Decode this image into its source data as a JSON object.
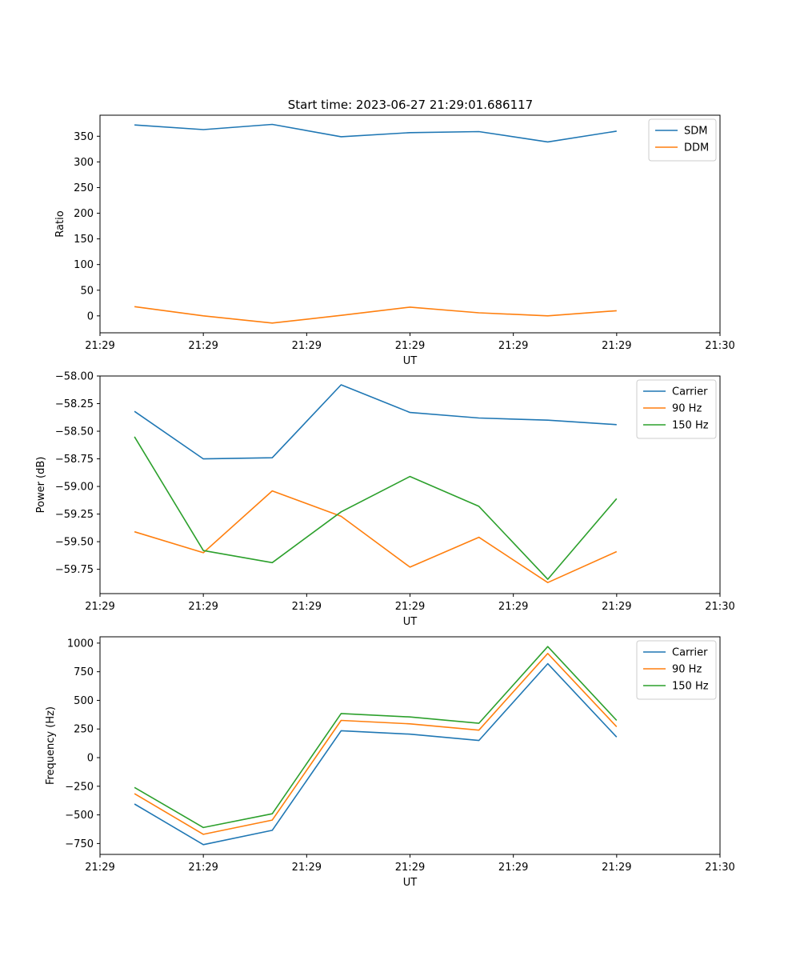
{
  "figure": {
    "title": "Start time: 2023-06-27 21:29:01.686117"
  },
  "colors": {
    "blue": "#1f77b4",
    "orange": "#ff7f0e",
    "green": "#2ca02c"
  },
  "chart_data": [
    {
      "type": "line",
      "title": "Start time: 2023-06-27 21:29:01.686117",
      "xlabel": "UT",
      "ylabel": "Ratio",
      "x": [
        1,
        2,
        3,
        4,
        5,
        6,
        7,
        8
      ],
      "xlim": [
        0.5,
        9.5
      ],
      "xticks": [
        {
          "pos": 0.5,
          "label": "21:29"
        },
        {
          "pos": 2.0,
          "label": "21:29"
        },
        {
          "pos": 3.5,
          "label": "21:29"
        },
        {
          "pos": 5.0,
          "label": "21:29"
        },
        {
          "pos": 6.5,
          "label": "21:29"
        },
        {
          "pos": 8.0,
          "label": "21:29"
        },
        {
          "pos": 9.5,
          "label": "21:30"
        }
      ],
      "ylim": [
        -33,
        391
      ],
      "yticks": [
        0,
        50,
        100,
        150,
        200,
        250,
        300,
        350
      ],
      "legend": "top-right",
      "series": [
        {
          "name": "SDM",
          "color": "#1f77b4",
          "values": [
            372,
            363,
            373,
            349,
            357,
            359,
            339,
            360
          ]
        },
        {
          "name": "DDM",
          "color": "#ff7f0e",
          "values": [
            18,
            0,
            -14,
            1,
            17,
            6,
            0,
            10
          ]
        }
      ]
    },
    {
      "type": "line",
      "xlabel": "UT",
      "ylabel": "Power (dB)",
      "x": [
        1,
        2,
        3,
        4,
        5,
        6,
        7,
        8
      ],
      "xlim": [
        0.5,
        9.5
      ],
      "xticks": [
        {
          "pos": 0.5,
          "label": "21:29"
        },
        {
          "pos": 2.0,
          "label": "21:29"
        },
        {
          "pos": 3.5,
          "label": "21:29"
        },
        {
          "pos": 5.0,
          "label": "21:29"
        },
        {
          "pos": 6.5,
          "label": "21:29"
        },
        {
          "pos": 8.0,
          "label": "21:29"
        },
        {
          "pos": 9.5,
          "label": "21:30"
        }
      ],
      "ylim": [
        -59.97,
        -58.0
      ],
      "yticks": [
        -59.75,
        -59.5,
        -59.25,
        -59.0,
        -58.75,
        -58.5,
        -58.25,
        -58.0
      ],
      "yticklabels": [
        "−59.75",
        "−59.50",
        "−59.25",
        "−59.00",
        "−58.75",
        "−58.50",
        "−58.25",
        "−58.00"
      ],
      "legend": "top-right",
      "series": [
        {
          "name": "Carrier",
          "color": "#1f77b4",
          "values": [
            -58.32,
            -58.75,
            -58.74,
            -58.08,
            -58.33,
            -58.38,
            -58.4,
            -58.44
          ]
        },
        {
          "name": "90 Hz",
          "color": "#ff7f0e",
          "values": [
            -59.41,
            -59.6,
            -59.04,
            -59.27,
            -59.73,
            -59.46,
            -59.87,
            -59.59
          ]
        },
        {
          "name": "150 Hz",
          "color": "#2ca02c",
          "values": [
            -58.55,
            -59.58,
            -59.69,
            -59.23,
            -58.91,
            -59.18,
            -59.84,
            -59.11
          ]
        }
      ]
    },
    {
      "type": "line",
      "xlabel": "UT",
      "ylabel": "Frequency (Hz)",
      "x": [
        1,
        2,
        3,
        4,
        5,
        6,
        7,
        8
      ],
      "xlim": [
        0.5,
        9.5
      ],
      "xticks": [
        {
          "pos": 0.5,
          "label": "21:29"
        },
        {
          "pos": 2.0,
          "label": "21:29"
        },
        {
          "pos": 3.5,
          "label": "21:29"
        },
        {
          "pos": 5.0,
          "label": "21:29"
        },
        {
          "pos": 6.5,
          "label": "21:29"
        },
        {
          "pos": 8.0,
          "label": "21:29"
        },
        {
          "pos": 9.5,
          "label": "21:30"
        }
      ],
      "ylim": [
        -845,
        1055
      ],
      "yticks": [
        -750,
        -500,
        -250,
        0,
        250,
        500,
        750,
        1000
      ],
      "yticklabels": [
        "−750",
        "−500",
        "−250",
        "0",
        "250",
        "500",
        "750",
        "1000"
      ],
      "legend": "top-right",
      "series": [
        {
          "name": "Carrier",
          "color": "#1f77b4",
          "values": [
            -405,
            -760,
            -635,
            235,
            205,
            150,
            820,
            180
          ]
        },
        {
          "name": "90 Hz",
          "color": "#ff7f0e",
          "values": [
            -315,
            -670,
            -545,
            325,
            295,
            240,
            910,
            270
          ]
        },
        {
          "name": "150 Hz",
          "color": "#2ca02c",
          "values": [
            -260,
            -610,
            -490,
            385,
            355,
            300,
            970,
            325
          ]
        }
      ]
    }
  ]
}
